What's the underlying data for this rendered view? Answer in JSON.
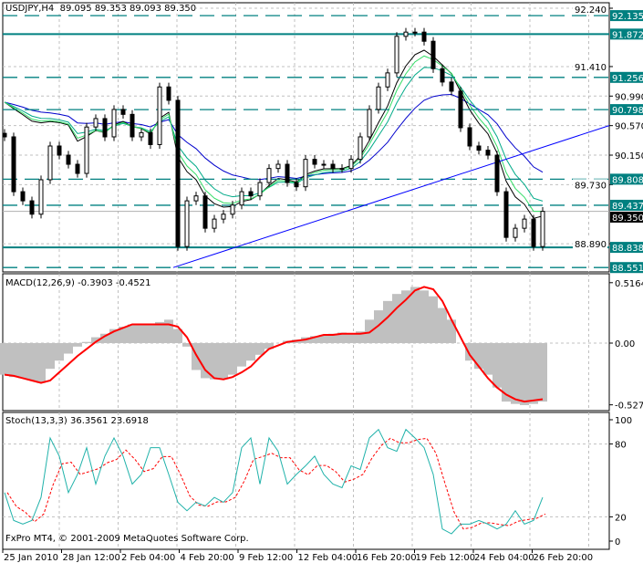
{
  "chart_data": [
    {
      "type": "candlestick",
      "title": "USDJPY,H4  89.095 89.353 89.093 89.350",
      "symbol": "USDJPY",
      "timeframe": "H4",
      "ohlc_last": [
        89.095,
        89.353,
        89.093,
        89.35
      ],
      "ylim": [
        88.45,
        92.3
      ],
      "y_ticks": [
        "92.240",
        "91.410",
        "90.990",
        "90.570",
        "90.150",
        "89.730",
        "88.890"
      ],
      "closes": [
        90.41,
        89.63,
        89.5,
        89.31,
        89.8,
        90.28,
        90.15,
        90.02,
        89.89,
        90.55,
        90.67,
        90.41,
        90.8,
        90.73,
        90.41,
        90.47,
        90.3,
        91.12,
        90.93,
        88.85,
        89.5,
        89.57,
        89.11,
        89.24,
        89.31,
        89.44,
        89.63,
        89.57,
        89.76,
        89.96,
        90.02,
        89.76,
        89.7,
        90.09,
        90.02,
        90.02,
        89.96,
        89.96,
        90.09,
        90.41,
        90.8,
        91.12,
        91.32,
        91.84,
        91.9,
        91.9,
        91.77,
        91.38,
        91.19,
        91.06,
        90.54,
        90.28,
        90.22,
        90.15,
        89.63,
        88.98,
        89.11,
        89.24,
        88.85,
        89.35
      ],
      "horizontal_levels": [
        {
          "value": "92.135",
          "style": "dashed"
        },
        {
          "value": "91.872",
          "style": "solid"
        },
        {
          "value": "91.256",
          "style": "dashed"
        },
        {
          "value": "90.798",
          "style": "dashed"
        },
        {
          "value": "89.808",
          "style": "dashed"
        },
        {
          "value": "89.437",
          "style": "dashed"
        },
        {
          "value": "88.838",
          "style": "solid"
        },
        {
          "value": "88.551",
          "style": "dashed"
        }
      ],
      "current_price": "89.350",
      "trendline": {
        "from": 88.551,
        "to": 90.57
      },
      "moving_average_colors": [
        "#0000cc",
        "#000000",
        "#00aa88",
        "#33dd66"
      ],
      "level_color": "#008080",
      "grid": true
    },
    {
      "type": "histogram+line",
      "title": "MACD(12,26,9) -0.3903 -0.4521",
      "y_ticks": [
        "0.5164",
        "0.00",
        "-0.5277"
      ],
      "ylim": [
        -0.5277,
        0.5164
      ],
      "histogram": [
        -0.27,
        -0.29,
        -0.3,
        -0.32,
        -0.34,
        -0.22,
        -0.15,
        -0.09,
        -0.03,
        0.01,
        0.05,
        0.08,
        0.12,
        0.14,
        0.16,
        0.16,
        0.16,
        0.18,
        0.2,
        0.12,
        -0.03,
        -0.23,
        -0.3,
        -0.31,
        -0.3,
        -0.27,
        -0.2,
        -0.15,
        -0.1,
        -0.05,
        0.0,
        0.02,
        0.03,
        0.05,
        0.06,
        0.07,
        0.08,
        0.09,
        0.08,
        0.1,
        0.2,
        0.28,
        0.36,
        0.42,
        0.45,
        0.48,
        0.45,
        0.4,
        0.3,
        0.2,
        0.0,
        -0.15,
        -0.22,
        -0.27,
        -0.38,
        -0.5,
        -0.52,
        -0.53,
        -0.52,
        -0.5
      ],
      "signal": [
        -0.27,
        -0.28,
        -0.3,
        -0.32,
        -0.34,
        -0.32,
        -0.25,
        -0.18,
        -0.11,
        -0.05,
        0.01,
        0.06,
        0.1,
        0.13,
        0.16,
        0.16,
        0.16,
        0.16,
        0.16,
        0.14,
        0.05,
        -0.1,
        -0.23,
        -0.3,
        -0.31,
        -0.29,
        -0.25,
        -0.2,
        -0.12,
        -0.05,
        -0.02,
        0.01,
        0.02,
        0.03,
        0.05,
        0.07,
        0.07,
        0.08,
        0.08,
        0.08,
        0.09,
        0.15,
        0.22,
        0.3,
        0.37,
        0.45,
        0.48,
        0.46,
        0.36,
        0.2,
        0.05,
        -0.1,
        -0.2,
        -0.3,
        -0.38,
        -0.44,
        -0.48,
        -0.5,
        -0.49,
        -0.48
      ],
      "histogram_color": "#c0c0c0",
      "signal_color": "#ff0000"
    },
    {
      "type": "line",
      "title": "Stoch(13,3,3) 36.3561 23.6918",
      "y_ticks": [
        "100",
        "80",
        "20",
        "0"
      ],
      "ylim": [
        0,
        100
      ],
      "main": [
        40,
        17,
        14,
        17,
        36,
        85,
        70,
        40,
        55,
        77,
        47,
        70,
        85,
        70,
        47,
        55,
        77,
        77,
        55,
        32,
        25,
        32,
        29,
        36,
        32,
        40,
        77,
        85,
        47,
        85,
        74,
        47,
        55,
        62,
        70,
        55,
        47,
        44,
        62,
        59,
        85,
        92,
        77,
        74,
        92,
        85,
        77,
        55,
        10,
        6,
        14,
        14,
        17,
        14,
        10,
        14,
        25,
        14,
        17,
        36
      ],
      "main_color": "#20b2aa",
      "signal_color": "#ff0000"
    }
  ],
  "x_labels": [
    "25 Jan 2010",
    "28 Jan 12:00",
    "2 Feb 04:00",
    "4 Feb 20:00",
    "9 Feb 12:00",
    "12 Feb 04:00",
    "16 Feb 20:00",
    "19 Feb 12:00",
    "24 Feb 04:00",
    "26 Feb 20:00"
  ],
  "copyright": "FxPro MT4, © 2001-2009 MetaQuotes Software Corp."
}
